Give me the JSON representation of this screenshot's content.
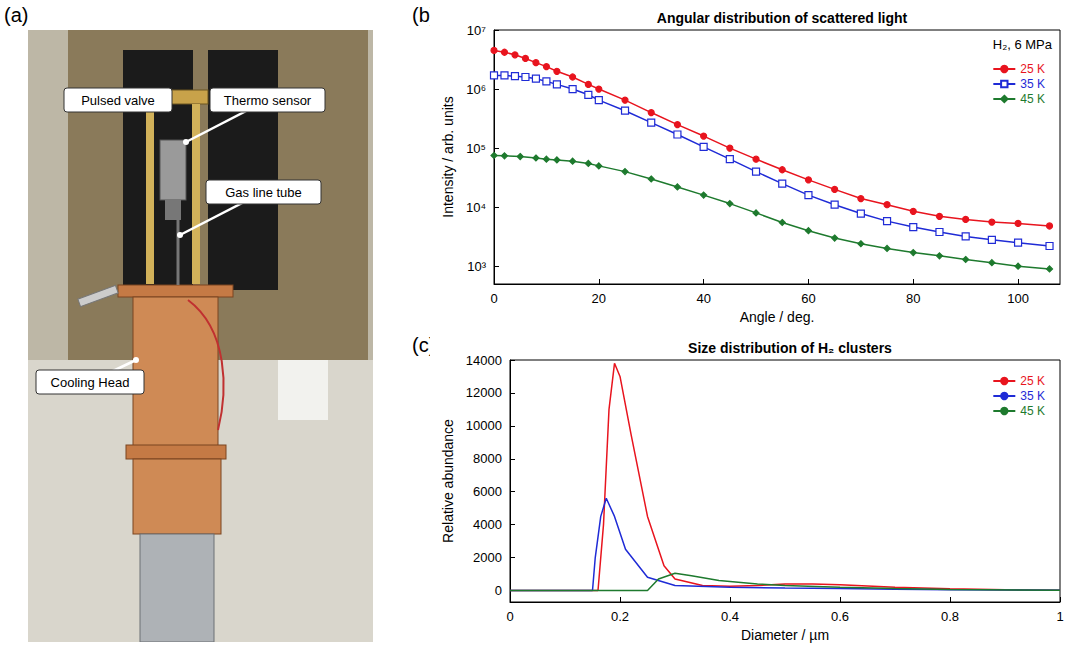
{
  "photo": {
    "panel": "(a)",
    "callouts": [
      "Pulsed valve",
      "Thermo sensor",
      "Gas line tube",
      "Cooling Head"
    ]
  },
  "chart_data": [
    {
      "panel": "(b)",
      "type": "line",
      "title": "Angular distribution of scattered light",
      "x_label": "Angle / deg.",
      "y_label": "Intensity / arb. units",
      "annotations": [
        "H₂, 6 MPa"
      ],
      "log": "y",
      "grid": false,
      "legend": "top-right",
      "xlim": [
        0,
        108
      ],
      "xticks": [
        0,
        20,
        40,
        60,
        80,
        100
      ],
      "ylim": [
        500,
        10000000
      ],
      "yticks": [
        {
          "value": 1000,
          "label": "10³"
        },
        {
          "value": 10000,
          "label": "10⁴"
        },
        {
          "value": 100000,
          "label": "10⁵"
        },
        {
          "value": 1000000,
          "label": "10⁶"
        },
        {
          "value": 10000000,
          "label": "10⁷"
        }
      ],
      "series": [
        {
          "name": "25 K",
          "color": "#e8141e",
          "marker": "circle",
          "line_style": "solid",
          "x": [
            0,
            2,
            4,
            6,
            8,
            10,
            12,
            15,
            18,
            20,
            25,
            30,
            35,
            40,
            45,
            50,
            55,
            60,
            65,
            70,
            75,
            80,
            85,
            90,
            95,
            100,
            106
          ],
          "values": [
            4500000,
            4200000,
            3800000,
            3300000,
            2800000,
            2400000,
            2000000,
            1600000,
            1200000,
            1000000,
            650000,
            400000,
            250000,
            160000,
            100000,
            65000,
            43000,
            29000,
            20000,
            14000,
            11000,
            8500,
            7000,
            6200,
            5600,
            5300,
            4800
          ]
        },
        {
          "name": "35 K",
          "color": "#1f2bd6",
          "marker": "square_open",
          "line_style": "solid",
          "x": [
            0,
            2,
            4,
            6,
            8,
            10,
            12,
            15,
            18,
            20,
            25,
            30,
            35,
            40,
            45,
            50,
            55,
            60,
            65,
            70,
            75,
            80,
            85,
            90,
            95,
            100,
            106
          ],
          "values": [
            1700000,
            1700000,
            1650000,
            1600000,
            1500000,
            1350000,
            1200000,
            1000000,
            800000,
            650000,
            430000,
            270000,
            170000,
            105000,
            65000,
            40000,
            25000,
            16000,
            11000,
            7800,
            5800,
            4600,
            3800,
            3200,
            2800,
            2500,
            2200
          ]
        },
        {
          "name": "45 K",
          "color": "#1e7a2e",
          "marker": "diamond",
          "line_style": "solid",
          "x": [
            0,
            2,
            5,
            8,
            10,
            12,
            15,
            18,
            20,
            25,
            30,
            35,
            40,
            45,
            50,
            55,
            60,
            65,
            70,
            75,
            80,
            85,
            90,
            95,
            100,
            106
          ],
          "values": [
            75000,
            74000,
            72000,
            68000,
            65000,
            63000,
            60000,
            55000,
            50000,
            40000,
            30000,
            22000,
            16000,
            11500,
            8000,
            5500,
            4000,
            3000,
            2400,
            2000,
            1700,
            1500,
            1300,
            1150,
            1000,
            900
          ]
        }
      ]
    },
    {
      "panel": "(c)",
      "type": "line",
      "title": "Size distribution of H₂ clusters",
      "x_label": "Diameter / µm",
      "y_label": "Relative abundance",
      "grid": false,
      "legend": "top-right",
      "xlim": [
        0,
        1
      ],
      "xticks": [
        0,
        0.2,
        0.4,
        0.6,
        0.8,
        1
      ],
      "ylim": [
        -700,
        14000
      ],
      "yticks": [
        0,
        2000,
        4000,
        6000,
        8000,
        10000,
        12000,
        14000
      ],
      "series": [
        {
          "name": "25 K",
          "color": "#e8141e",
          "marker": "none",
          "line_style": "solid",
          "x": [
            0,
            0.16,
            0.17,
            0.18,
            0.19,
            0.2,
            0.22,
            0.25,
            0.28,
            0.3,
            0.35,
            0.4,
            0.45,
            0.5,
            0.55,
            0.6,
            0.7,
            0.8,
            0.9,
            1.0
          ],
          "values": [
            0,
            0,
            4000,
            11000,
            13800,
            13000,
            9500,
            4500,
            1500,
            700,
            300,
            250,
            300,
            400,
            400,
            350,
            200,
            100,
            40,
            10
          ]
        },
        {
          "name": "35 K",
          "color": "#1f2bd6",
          "marker": "none",
          "line_style": "solid",
          "x": [
            0,
            0.15,
            0.155,
            0.165,
            0.175,
            0.19,
            0.21,
            0.25,
            0.3,
            0.4,
            0.5,
            0.6,
            0.7,
            0.8,
            1.0
          ],
          "values": [
            0,
            0,
            2000,
            4500,
            5600,
            4500,
            2500,
            800,
            300,
            200,
            150,
            120,
            80,
            40,
            10
          ]
        },
        {
          "name": "45 K",
          "color": "#1e7a2e",
          "marker": "none",
          "line_style": "solid",
          "x": [
            0,
            0.25,
            0.27,
            0.3,
            0.33,
            0.38,
            0.45,
            0.5,
            0.6,
            0.7,
            0.8,
            1.0
          ],
          "values": [
            0,
            0,
            700,
            1050,
            900,
            600,
            400,
            300,
            200,
            120,
            60,
            15
          ]
        }
      ]
    }
  ]
}
